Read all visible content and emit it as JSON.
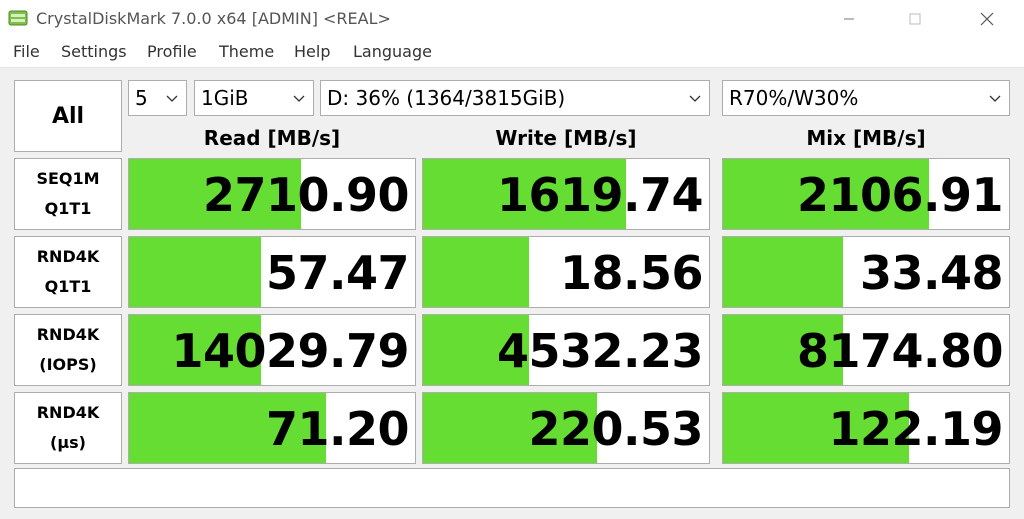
{
  "window": {
    "title": "CrystalDiskMark 7.0.0 x64 [ADMIN] <REAL>"
  },
  "menu": [
    "File",
    "Settings",
    "Profile",
    "Theme",
    "Help",
    "Language"
  ],
  "controls": {
    "all_label": "All",
    "count": "5",
    "size": "1GiB",
    "drive": "D: 36% (1364/3815GiB)",
    "mix": "R70%/W30%"
  },
  "headers": {
    "read": "Read [MB/s]",
    "write": "Write [MB/s]",
    "mix": "Mix [MB/s]"
  },
  "rows": [
    {
      "label1": "SEQ1M",
      "label2": "Q1T1",
      "read": {
        "value": "2710.90",
        "fill": 0.6
      },
      "write": {
        "value": "1619.74",
        "fill": 0.71
      },
      "mix": {
        "value": "2106.91",
        "fill": 0.72
      }
    },
    {
      "label1": "RND4K",
      "label2": "Q1T1",
      "read": {
        "value": "57.47",
        "fill": 0.46
      },
      "write": {
        "value": "18.56",
        "fill": 0.37
      },
      "mix": {
        "value": "33.48",
        "fill": 0.42
      }
    },
    {
      "label1": "RND4K",
      "label2": "(IOPS)",
      "read": {
        "value": "14029.79",
        "fill": 0.46
      },
      "write": {
        "value": "4532.23",
        "fill": 0.37
      },
      "mix": {
        "value": "8174.80",
        "fill": 0.42
      }
    },
    {
      "label1": "RND4K",
      "label2": "(μs)",
      "read": {
        "value": "71.20",
        "fill": 0.69
      },
      "write": {
        "value": "220.53",
        "fill": 0.61
      },
      "mix": {
        "value": "122.19",
        "fill": 0.65
      }
    }
  ],
  "comment": "",
  "colors": {
    "bar": "#66dd33"
  }
}
